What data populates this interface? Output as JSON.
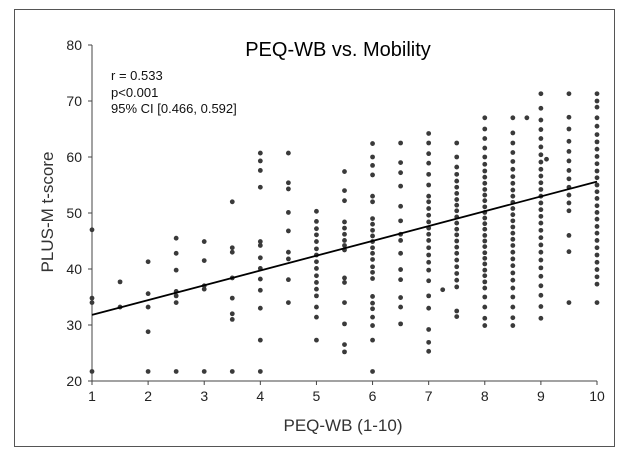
{
  "chart_data": {
    "type": "scatter",
    "title": "PEQ-WB vs. Mobility",
    "xlabel": "PEQ-WB (1-10)",
    "ylabel": "PLUS-M t-score",
    "xlim": [
      1,
      10
    ],
    "ylim": [
      20,
      80
    ],
    "x_ticks": [
      "1",
      "2",
      "3",
      "4",
      "5",
      "6",
      "7",
      "8",
      "9",
      "10"
    ],
    "y_ticks": [
      "20",
      "30",
      "40",
      "50",
      "60",
      "70",
      "80"
    ],
    "grid": false,
    "annotations": [
      "r = 0.533",
      "p<0.001",
      "95% CI [0.466, 0.592]"
    ],
    "trendline": {
      "x": [
        1,
        10
      ],
      "y": [
        31.8,
        55.6
      ]
    },
    "columns": [
      {
        "x": 1,
        "y": [
          21.7,
          34.0,
          34.8,
          47.0
        ]
      },
      {
        "x": 1.5,
        "y": [
          33.2,
          37.7
        ]
      },
      {
        "x": 2,
        "y": [
          21.7,
          28.8,
          33.2,
          35.6,
          41.3
        ]
      },
      {
        "x": 2.5,
        "y": [
          21.7,
          34.0,
          35.2,
          36.0,
          39.8,
          42.8,
          45.5
        ]
      },
      {
        "x": 3,
        "y": [
          21.7,
          36.4,
          37.0,
          41.5,
          44.9
        ]
      },
      {
        "x": 3.5,
        "y": [
          21.7,
          31.0,
          32.0,
          34.8,
          38.4,
          43.0,
          43.8,
          52.0
        ]
      },
      {
        "x": 4,
        "y": [
          21.7,
          27.3,
          33.0,
          36.2,
          38.2,
          40.1,
          42.0,
          44.2,
          44.9,
          54.6,
          57.6,
          59.3,
          60.7
        ]
      },
      {
        "x": 4.5,
        "y": [
          34.0,
          38.1,
          41.8,
          43.0,
          46.8,
          50.1,
          54.3,
          55.4,
          60.7
        ]
      },
      {
        "x": 5,
        "y": [
          27.3,
          31.4,
          33.2,
          35.2,
          36.4,
          37.6,
          38.8,
          40.1,
          41.3,
          42.5,
          43.6,
          44.9,
          46.1,
          47.2,
          48.5,
          50.3
        ]
      },
      {
        "x": 5.5,
        "y": [
          25.2,
          26.5,
          30.2,
          34.0,
          37.6,
          38.4,
          43.4,
          44.2,
          45.1,
          46.2,
          47.3,
          48.4,
          52.2,
          54.0,
          57.4
        ]
      },
      {
        "x": 6,
        "y": [
          21.7,
          27.3,
          29.9,
          31.4,
          32.9,
          33.9,
          35.1,
          38.3,
          39.4,
          40.4,
          41.7,
          42.8,
          43.8,
          44.9,
          45.9,
          46.9,
          48.0,
          49.0,
          52.0,
          53.0,
          56.8,
          58.5,
          60.0,
          62.4
        ]
      },
      {
        "x": 6.5,
        "y": [
          30.2,
          33.2,
          34.9,
          38.1,
          39.9,
          42.8,
          45.1,
          46.2,
          48.6,
          51.2,
          54.8,
          57.2,
          59.0,
          62.5
        ]
      },
      {
        "x": 7,
        "y": [
          25.3,
          26.9,
          29.2,
          33.0,
          35.2,
          37.9,
          39.8,
          41.2,
          42.5,
          43.8,
          45.1,
          46.2,
          47.3,
          48.4,
          49.6,
          50.8,
          52.0,
          53.0,
          55.0,
          56.9,
          58.9,
          60.6,
          62.5,
          64.2
        ]
      },
      {
        "x": 7.25,
        "y": [
          36.3
        ]
      },
      {
        "x": 7.5,
        "y": [
          31.5,
          32.5,
          36.8,
          38.0,
          39.2,
          40.4,
          41.6,
          42.8,
          43.9,
          45.0,
          46.1,
          47.1,
          48.2,
          49.3,
          50.4,
          51.4,
          52.4,
          53.5,
          54.6,
          55.7,
          56.9,
          58.2,
          60.0,
          62.5
        ]
      },
      {
        "x": 8,
        "y": [
          29.9,
          31.2,
          33.2,
          35.0,
          36.6,
          37.7,
          38.8,
          39.8,
          40.9,
          41.9,
          42.9,
          44.0,
          45.0,
          46.0,
          47.1,
          48.1,
          49.1,
          50.1,
          51.1,
          52.2,
          53.2,
          54.2,
          55.3,
          56.4,
          57.5,
          58.7,
          60.0,
          61.6,
          63.3,
          65.0,
          67.0
        ]
      },
      {
        "x": 8.5,
        "y": [
          29.9,
          31.3,
          33.2,
          35.0,
          36.6,
          38.0,
          39.3,
          40.6,
          41.8,
          43.0,
          44.2,
          45.3,
          46.4,
          47.5,
          48.6,
          49.7,
          50.8,
          51.9,
          53.0,
          54.1,
          55.3,
          56.5,
          57.8,
          59.2,
          60.8,
          62.5,
          64.3,
          67.0
        ]
      },
      {
        "x": 8.75,
        "y": [
          67.0
        ]
      },
      {
        "x": 9,
        "y": [
          31.2,
          33.3,
          35.3,
          37.0,
          38.7,
          40.2,
          41.6,
          43.0,
          44.3,
          45.6,
          46.9,
          48.2,
          49.4,
          50.6,
          51.8,
          53.0,
          54.2,
          55.4,
          56.6,
          57.8,
          59.1,
          60.4,
          61.8,
          63.3,
          64.9,
          66.6,
          68.7,
          71.3
        ]
      },
      {
        "x": 9.1,
        "y": [
          59.6
        ]
      },
      {
        "x": 9.5,
        "y": [
          34.0,
          43.1,
          46.0,
          50.4,
          51.8,
          53.2,
          54.6,
          56.1,
          57.6,
          59.3,
          61.0,
          62.8,
          65.0,
          67.1,
          71.3
        ]
      },
      {
        "x": 10,
        "y": [
          34.0,
          37.3,
          38.6,
          39.9,
          41.2,
          42.5,
          43.8,
          45.1,
          46.4,
          47.6,
          48.9,
          50.1,
          51.3,
          52.6,
          53.8,
          55.0,
          56.3,
          57.5,
          58.8,
          60.1,
          61.4,
          62.7,
          64.0,
          65.5,
          67.0,
          68.9,
          70.0,
          71.3
        ]
      }
    ]
  }
}
